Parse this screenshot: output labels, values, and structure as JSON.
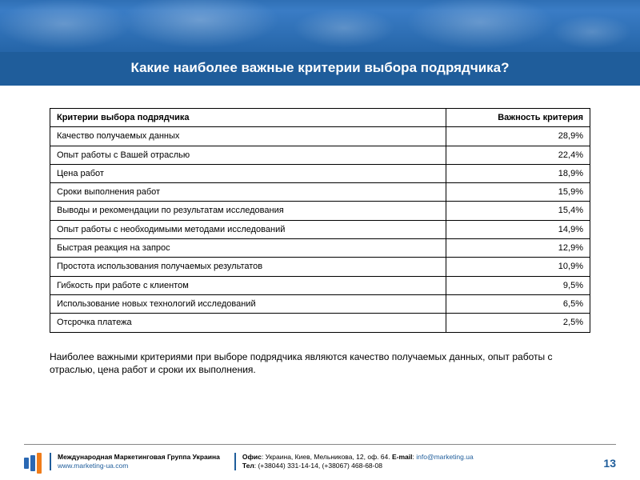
{
  "header": {
    "title": "Какие наиболее важные критерии выбора подрядчика?"
  },
  "table": {
    "columns": [
      "Критерии выбора подрядчика",
      "Важность критерия"
    ],
    "rows": [
      [
        "Качество получаемых данных",
        "28,9%"
      ],
      [
        "Опыт работы с Вашей отраслью",
        "22,4%"
      ],
      [
        "Цена работ",
        "18,9%"
      ],
      [
        "Сроки выполнения работ",
        "15,9%"
      ],
      [
        "Выводы и рекомендации по результатам исследования",
        "15,4%"
      ],
      [
        "Опыт работы с необходимыми методами исследований",
        "14,9%"
      ],
      [
        "Быстрая реакция на запрос",
        "12,9%"
      ],
      [
        "Простота использования получаемых результатов",
        "10,9%"
      ],
      [
        "Гибкость при работе с клиентом",
        "9,5%"
      ],
      [
        "Использование новых технологий исследований",
        "6,5%"
      ],
      [
        "Отсрочка платежа",
        "2,5%"
      ]
    ],
    "col_widths": [
      "auto",
      "180px"
    ],
    "border_color": "#000000",
    "fontsize": 11
  },
  "summary": "Наиболее важными критериями при выборе подрядчика являются качество получаемых данных, опыт работы с отраслью, цена работ и сроки их выполнения.",
  "footer": {
    "company": "Международная Маркетинговая Группа Украина",
    "website": "www.marketing-ua.com",
    "office_label": "Офис",
    "office": ": Украина, Киев, Мельникова, 12, оф. 64. ",
    "email_label": "E-mail",
    "email": "info@marketing.ua",
    "tel_label": "Тел",
    "tel": ": (+38044) 331-14-14, (+38067) 468-68-08",
    "page": "13",
    "logo_colors": [
      "#2a68b3",
      "#2a68b3",
      "#f07d1a"
    ]
  },
  "colors": {
    "title_bg": "#1f5d9b",
    "title_fg": "#ffffff",
    "accent": "#1f5d9b",
    "link": "#1f5d9b"
  }
}
